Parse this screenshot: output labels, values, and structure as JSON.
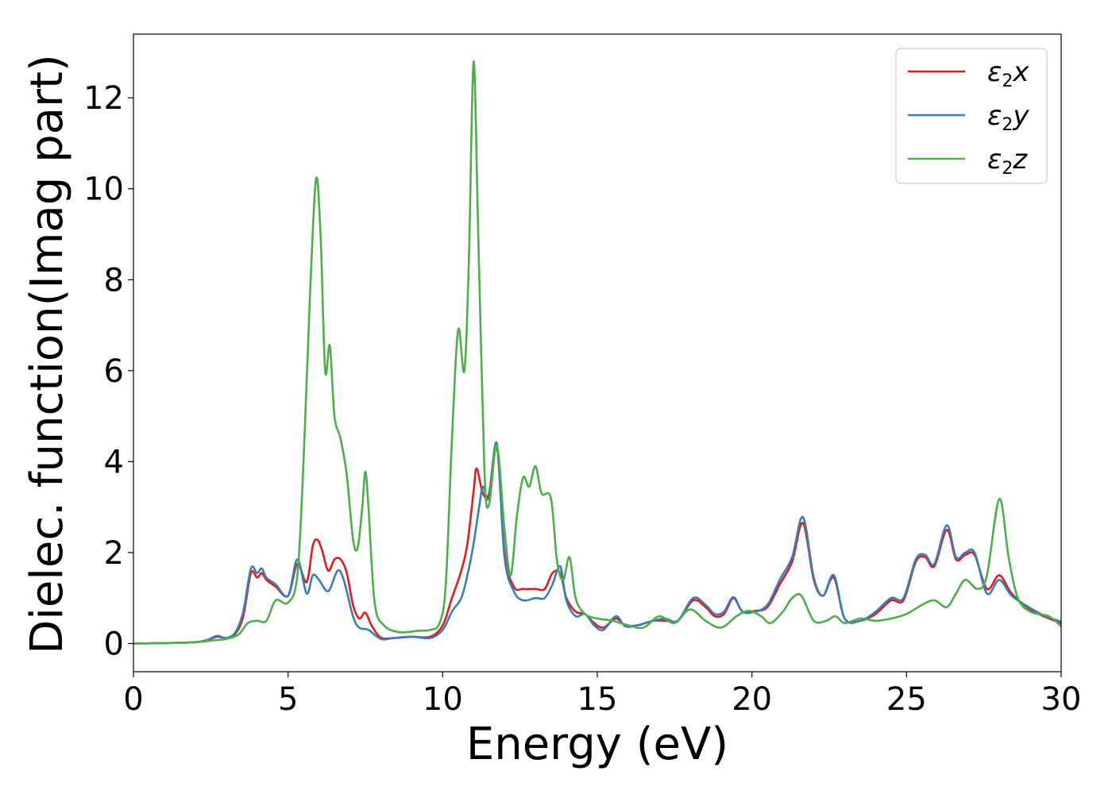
{
  "chart_data": {
    "type": "line",
    "title": "",
    "xlabel": "Energy (eV)",
    "ylabel": "Dielec. function(Imag part)",
    "xlim": [
      0,
      30
    ],
    "ylim": [
      -0.62,
      13.4
    ],
    "xticks": [
      0,
      5,
      10,
      15,
      20,
      25,
      30
    ],
    "xtick_labels": [
      "0",
      "5",
      "10",
      "15",
      "20",
      "25",
      "30"
    ],
    "yticks": [
      0,
      2,
      4,
      6,
      8,
      10,
      12
    ],
    "ytick_labels": [
      "0",
      "2",
      "4",
      "6",
      "8",
      "10",
      "12"
    ],
    "grid": false,
    "legend_position": "top-right",
    "legend_symbol": "ε",
    "legend_subscript": "2",
    "series": [
      {
        "name": "ε2x",
        "legend_suffix": "x",
        "color": "#e41a1c",
        "points": [
          [
            0,
            0
          ],
          [
            1,
            0.01
          ],
          [
            2,
            0.03
          ],
          [
            2.4,
            0.08
          ],
          [
            2.7,
            0.15
          ],
          [
            3.0,
            0.12
          ],
          [
            3.3,
            0.22
          ],
          [
            3.55,
            0.6
          ],
          [
            3.8,
            1.55
          ],
          [
            4.0,
            1.45
          ],
          [
            4.15,
            1.55
          ],
          [
            4.3,
            1.4
          ],
          [
            4.6,
            1.25
          ],
          [
            5.0,
            1.05
          ],
          [
            5.3,
            1.75
          ],
          [
            5.6,
            1.35
          ],
          [
            5.8,
            2.15
          ],
          [
            5.95,
            2.28
          ],
          [
            6.1,
            2.05
          ],
          [
            6.3,
            1.6
          ],
          [
            6.5,
            1.85
          ],
          [
            6.7,
            1.85
          ],
          [
            6.9,
            1.55
          ],
          [
            7.1,
            0.85
          ],
          [
            7.3,
            0.55
          ],
          [
            7.5,
            0.68
          ],
          [
            7.7,
            0.4
          ],
          [
            8.0,
            0.13
          ],
          [
            8.4,
            0.12
          ],
          [
            9.0,
            0.15
          ],
          [
            9.6,
            0.15
          ],
          [
            10.0,
            0.4
          ],
          [
            10.3,
            1.0
          ],
          [
            10.6,
            1.6
          ],
          [
            10.8,
            2.2
          ],
          [
            11.0,
            3.35
          ],
          [
            11.1,
            3.85
          ],
          [
            11.3,
            3.3
          ],
          [
            11.5,
            3.3
          ],
          [
            11.75,
            4.35
          ],
          [
            12.0,
            2.0
          ],
          [
            12.3,
            1.25
          ],
          [
            12.6,
            1.2
          ],
          [
            13.0,
            1.2
          ],
          [
            13.3,
            1.2
          ],
          [
            13.55,
            1.55
          ],
          [
            13.8,
            1.55
          ],
          [
            14.0,
            1.0
          ],
          [
            14.3,
            0.7
          ],
          [
            14.6,
            0.65
          ],
          [
            14.9,
            0.45
          ],
          [
            15.2,
            0.35
          ],
          [
            15.6,
            0.55
          ],
          [
            15.9,
            0.4
          ],
          [
            16.3,
            0.4
          ],
          [
            16.8,
            0.5
          ],
          [
            17.2,
            0.5
          ],
          [
            17.6,
            0.5
          ],
          [
            18.1,
            0.95
          ],
          [
            18.5,
            0.8
          ],
          [
            18.8,
            0.6
          ],
          [
            19.1,
            0.65
          ],
          [
            19.4,
            1.0
          ],
          [
            19.7,
            0.7
          ],
          [
            20.1,
            0.72
          ],
          [
            20.5,
            0.8
          ],
          [
            20.9,
            1.3
          ],
          [
            21.3,
            1.8
          ],
          [
            21.65,
            2.65
          ],
          [
            22.0,
            1.4
          ],
          [
            22.3,
            1.05
          ],
          [
            22.65,
            1.45
          ],
          [
            23.0,
            0.55
          ],
          [
            23.5,
            0.5
          ],
          [
            24.0,
            0.65
          ],
          [
            24.5,
            0.95
          ],
          [
            24.9,
            0.95
          ],
          [
            25.3,
            1.8
          ],
          [
            25.6,
            1.9
          ],
          [
            25.9,
            1.7
          ],
          [
            26.3,
            2.5
          ],
          [
            26.6,
            1.85
          ],
          [
            26.9,
            1.95
          ],
          [
            27.2,
            1.95
          ],
          [
            27.6,
            1.2
          ],
          [
            28.0,
            1.5
          ],
          [
            28.4,
            1.1
          ],
          [
            29.0,
            0.75
          ],
          [
            29.5,
            0.58
          ],
          [
            30.0,
            0.45
          ]
        ]
      },
      {
        "name": "ε2y",
        "legend_suffix": "y",
        "color": "#377eb8",
        "points": [
          [
            0,
            0
          ],
          [
            1,
            0.01
          ],
          [
            2,
            0.03
          ],
          [
            2.4,
            0.08
          ],
          [
            2.7,
            0.17
          ],
          [
            3.0,
            0.12
          ],
          [
            3.3,
            0.25
          ],
          [
            3.55,
            0.7
          ],
          [
            3.8,
            1.65
          ],
          [
            4.0,
            1.55
          ],
          [
            4.15,
            1.65
          ],
          [
            4.3,
            1.45
          ],
          [
            4.6,
            1.3
          ],
          [
            5.0,
            1.05
          ],
          [
            5.3,
            1.85
          ],
          [
            5.6,
            1.1
          ],
          [
            5.8,
            1.5
          ],
          [
            6.0,
            1.4
          ],
          [
            6.3,
            1.15
          ],
          [
            6.6,
            1.6
          ],
          [
            6.8,
            1.4
          ],
          [
            7.1,
            0.6
          ],
          [
            7.3,
            0.35
          ],
          [
            7.6,
            0.3
          ],
          [
            8.0,
            0.1
          ],
          [
            8.4,
            0.12
          ],
          [
            9.0,
            0.15
          ],
          [
            9.6,
            0.12
          ],
          [
            10.0,
            0.3
          ],
          [
            10.3,
            0.7
          ],
          [
            10.6,
            1.0
          ],
          [
            10.8,
            1.5
          ],
          [
            11.0,
            2.2
          ],
          [
            11.2,
            3.1
          ],
          [
            11.3,
            3.45
          ],
          [
            11.5,
            3.2
          ],
          [
            11.75,
            4.4
          ],
          [
            12.0,
            1.9
          ],
          [
            12.3,
            1.15
          ],
          [
            12.6,
            0.95
          ],
          [
            13.0,
            1.0
          ],
          [
            13.3,
            1.0
          ],
          [
            13.55,
            1.3
          ],
          [
            13.8,
            1.7
          ],
          [
            14.0,
            0.95
          ],
          [
            14.3,
            0.6
          ],
          [
            14.6,
            0.65
          ],
          [
            14.9,
            0.4
          ],
          [
            15.2,
            0.3
          ],
          [
            15.6,
            0.6
          ],
          [
            15.9,
            0.38
          ],
          [
            16.3,
            0.4
          ],
          [
            16.8,
            0.5
          ],
          [
            17.2,
            0.55
          ],
          [
            17.6,
            0.5
          ],
          [
            18.1,
            1.0
          ],
          [
            18.5,
            0.85
          ],
          [
            18.8,
            0.65
          ],
          [
            19.1,
            0.7
          ],
          [
            19.4,
            1.02
          ],
          [
            19.7,
            0.7
          ],
          [
            20.1,
            0.7
          ],
          [
            20.5,
            0.85
          ],
          [
            20.9,
            1.4
          ],
          [
            21.3,
            1.9
          ],
          [
            21.65,
            2.78
          ],
          [
            22.0,
            1.45
          ],
          [
            22.3,
            1.05
          ],
          [
            22.65,
            1.5
          ],
          [
            23.0,
            0.55
          ],
          [
            23.5,
            0.5
          ],
          [
            24.0,
            0.7
          ],
          [
            24.5,
            1.0
          ],
          [
            24.9,
            1.0
          ],
          [
            25.3,
            1.85
          ],
          [
            25.6,
            1.95
          ],
          [
            25.9,
            1.75
          ],
          [
            26.3,
            2.6
          ],
          [
            26.6,
            1.9
          ],
          [
            26.9,
            2.0
          ],
          [
            27.2,
            2.0
          ],
          [
            27.6,
            1.1
          ],
          [
            28.0,
            1.4
          ],
          [
            28.4,
            1.05
          ],
          [
            29.0,
            0.78
          ],
          [
            29.5,
            0.6
          ],
          [
            30.0,
            0.48
          ]
        ]
      },
      {
        "name": "ε2z",
        "legend_suffix": "z",
        "color": "#4daf4a",
        "points": [
          [
            0,
            0
          ],
          [
            1,
            0.01
          ],
          [
            2,
            0.03
          ],
          [
            2.6,
            0.07
          ],
          [
            3.0,
            0.1
          ],
          [
            3.4,
            0.2
          ],
          [
            3.7,
            0.45
          ],
          [
            4.0,
            0.5
          ],
          [
            4.3,
            0.5
          ],
          [
            4.6,
            0.95
          ],
          [
            5.0,
            0.9
          ],
          [
            5.3,
            1.5
          ],
          [
            5.5,
            4.0
          ],
          [
            5.7,
            7.5
          ],
          [
            5.9,
            10.2
          ],
          [
            6.05,
            9.0
          ],
          [
            6.2,
            6.0
          ],
          [
            6.35,
            6.55
          ],
          [
            6.5,
            5.0
          ],
          [
            6.7,
            4.5
          ],
          [
            6.9,
            3.7
          ],
          [
            7.1,
            2.3
          ],
          [
            7.25,
            2.1
          ],
          [
            7.4,
            3.0
          ],
          [
            7.5,
            3.78
          ],
          [
            7.6,
            3.0
          ],
          [
            7.8,
            0.9
          ],
          [
            8.1,
            0.4
          ],
          [
            8.6,
            0.25
          ],
          [
            9.2,
            0.28
          ],
          [
            9.6,
            0.3
          ],
          [
            9.9,
            0.45
          ],
          [
            10.1,
            1.3
          ],
          [
            10.3,
            4.5
          ],
          [
            10.5,
            6.9
          ],
          [
            10.7,
            6.0
          ],
          [
            10.85,
            8.5
          ],
          [
            11.0,
            12.8
          ],
          [
            11.15,
            9.0
          ],
          [
            11.35,
            3.8
          ],
          [
            11.5,
            3.05
          ],
          [
            11.75,
            4.35
          ],
          [
            12.0,
            2.5
          ],
          [
            12.2,
            1.5
          ],
          [
            12.4,
            2.8
          ],
          [
            12.6,
            3.65
          ],
          [
            12.8,
            3.45
          ],
          [
            13.0,
            3.9
          ],
          [
            13.2,
            3.3
          ],
          [
            13.5,
            3.2
          ],
          [
            13.7,
            1.8
          ],
          [
            13.9,
            1.4
          ],
          [
            14.1,
            1.9
          ],
          [
            14.3,
            1.0
          ],
          [
            14.6,
            0.65
          ],
          [
            15.0,
            0.55
          ],
          [
            15.5,
            0.5
          ],
          [
            16.0,
            0.4
          ],
          [
            16.5,
            0.35
          ],
          [
            17.0,
            0.6
          ],
          [
            17.5,
            0.45
          ],
          [
            18.0,
            0.75
          ],
          [
            18.5,
            0.5
          ],
          [
            19.0,
            0.35
          ],
          [
            19.5,
            0.6
          ],
          [
            19.9,
            0.72
          ],
          [
            20.3,
            0.6
          ],
          [
            20.6,
            0.45
          ],
          [
            21.0,
            0.7
          ],
          [
            21.3,
            1.0
          ],
          [
            21.6,
            1.05
          ],
          [
            22.0,
            0.5
          ],
          [
            22.4,
            0.5
          ],
          [
            22.7,
            0.6
          ],
          [
            23.0,
            0.45
          ],
          [
            23.5,
            0.55
          ],
          [
            24.0,
            0.5
          ],
          [
            24.5,
            0.55
          ],
          [
            25.0,
            0.65
          ],
          [
            25.5,
            0.85
          ],
          [
            25.9,
            0.95
          ],
          [
            26.3,
            0.8
          ],
          [
            26.6,
            1.1
          ],
          [
            26.9,
            1.4
          ],
          [
            27.3,
            1.2
          ],
          [
            27.6,
            1.5
          ],
          [
            28.0,
            3.18
          ],
          [
            28.3,
            1.9
          ],
          [
            28.6,
            1.0
          ],
          [
            29.0,
            0.7
          ],
          [
            29.6,
            0.6
          ],
          [
            30.0,
            0.38
          ]
        ]
      }
    ]
  }
}
